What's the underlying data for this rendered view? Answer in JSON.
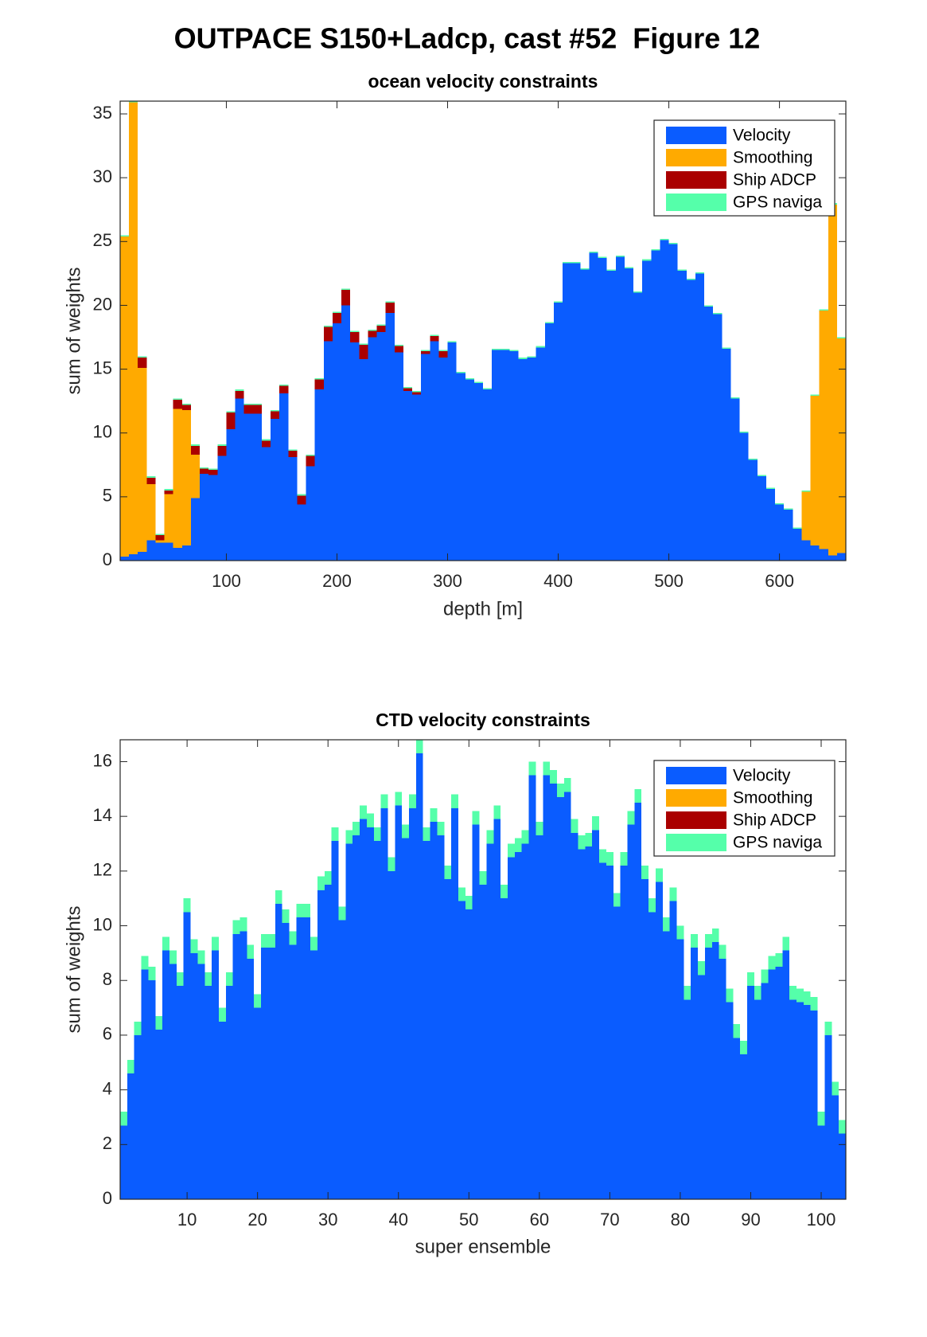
{
  "title": "OUTPACE S150+Ladcp, cast #52  Figure 12",
  "chart_data": [
    {
      "type": "stacked-bar",
      "title": "ocean velocity constraints",
      "xlabel": "depth [m]",
      "ylabel": "sum of weights",
      "x": [
        8,
        16,
        24,
        32,
        40,
        48,
        56,
        64,
        72,
        80,
        88,
        96,
        104,
        112,
        120,
        128,
        136,
        144,
        152,
        160,
        168,
        176,
        184,
        192,
        200,
        208,
        216,
        224,
        232,
        240,
        248,
        256,
        264,
        272,
        280,
        288,
        296,
        304,
        312,
        320,
        328,
        336,
        344,
        352,
        360,
        368,
        376,
        384,
        392,
        400,
        408,
        416,
        424,
        432,
        440,
        448,
        456,
        464,
        472,
        480,
        488,
        496,
        504,
        512,
        520,
        528,
        536,
        544,
        552,
        560,
        568,
        576,
        584,
        592,
        600,
        608,
        616,
        624,
        632,
        640,
        648,
        656
      ],
      "bar_width": 8,
      "xlim": [
        4,
        660
      ],
      "xticks": [
        100,
        200,
        300,
        400,
        500,
        600
      ],
      "ylim": [
        0,
        36
      ],
      "yticks": [
        0,
        5,
        10,
        15,
        20,
        25,
        30,
        35
      ],
      "legend": "upper right",
      "series": [
        {
          "name": "Velocity",
          "color": "#0a5cff",
          "values": [
            0.3,
            0.5,
            0.7,
            1.6,
            1.4,
            1.4,
            1.0,
            1.2,
            4.9,
            6.8,
            6.7,
            8.2,
            10.3,
            12.7,
            11.5,
            11.5,
            8.9,
            11.1,
            13.1,
            8.1,
            4.4,
            7.4,
            13.4,
            17.2,
            18.6,
            20.0,
            17.1,
            15.8,
            17.5,
            17.9,
            19.4,
            16.3,
            13.3,
            13.0,
            16.2,
            17.2,
            15.9,
            17.1,
            14.7,
            14.2,
            13.9,
            13.4,
            16.5,
            16.5,
            16.4,
            15.8,
            15.9,
            16.7,
            18.6,
            20.2,
            23.3,
            23.3,
            22.8,
            24.1,
            23.7,
            22.7,
            23.8,
            22.9,
            21.0,
            23.5,
            24.3,
            25.1,
            24.8,
            22.7,
            22.0,
            22.5,
            19.9,
            19.3,
            16.6,
            12.7,
            10.0,
            7.9,
            6.6,
            5.6,
            4.4,
            4.0,
            2.5,
            1.6,
            1.2,
            0.9,
            0.4,
            0.6
          ]
        },
        {
          "name": "Smoothing",
          "color": "#ffaa00",
          "values": [
            25.1,
            35.4,
            14.4,
            4.4,
            0.2,
            3.8,
            10.9,
            10.6,
            3.4,
            0,
            0,
            0,
            0,
            0,
            0,
            0,
            0,
            0,
            0,
            0,
            0,
            0,
            0,
            0,
            0,
            0,
            0,
            0,
            0,
            0,
            0,
            0,
            0,
            0,
            0,
            0,
            0,
            0,
            0,
            0,
            0,
            0,
            0,
            0,
            0,
            0,
            0,
            0,
            0,
            0,
            0,
            0,
            0,
            0,
            0,
            0,
            0,
            0,
            0,
            0,
            0,
            0,
            0,
            0,
            0,
            0,
            0,
            0,
            0,
            0,
            0,
            0,
            0,
            0,
            0,
            0,
            0,
            3.8,
            11.7,
            18.7,
            27.5,
            16.8
          ]
        },
        {
          "name": "Ship ADCP",
          "color": "#aa0000",
          "values": [
            0,
            0,
            0.8,
            0.5,
            0.4,
            0.3,
            0.7,
            0.4,
            0.7,
            0.4,
            0.4,
            0.8,
            1.3,
            0.6,
            0.7,
            0.7,
            0.5,
            0.6,
            0.6,
            0.5,
            0.7,
            0.8,
            0.8,
            1.1,
            0.8,
            1.2,
            0.8,
            1.1,
            0.5,
            0.5,
            0.8,
            0.5,
            0.2,
            0.2,
            0.2,
            0.4,
            0.5,
            0,
            0,
            0,
            0,
            0,
            0,
            0,
            0,
            0,
            0,
            0,
            0,
            0,
            0,
            0,
            0,
            0,
            0,
            0,
            0,
            0,
            0,
            0,
            0,
            0,
            0,
            0,
            0,
            0,
            0,
            0,
            0,
            0,
            0,
            0,
            0,
            0,
            0,
            0,
            0,
            0,
            0,
            0,
            0,
            0
          ]
        },
        {
          "name": "GPS naviga",
          "color": "#55ffaa",
          "values": [
            0.1,
            0.1,
            0.1,
            0.1,
            0.1,
            0.1,
            0.1,
            0.1,
            0.1,
            0.1,
            0.1,
            0.1,
            0.1,
            0.1,
            0.1,
            0.1,
            0.1,
            0.1,
            0.1,
            0.1,
            0.1,
            0.1,
            0.1,
            0.1,
            0.1,
            0.1,
            0.1,
            0.1,
            0.1,
            0.1,
            0.1,
            0.1,
            0.1,
            0.1,
            0.1,
            0.1,
            0.1,
            0.1,
            0.1,
            0.1,
            0.1,
            0.1,
            0.1,
            0.1,
            0.1,
            0.1,
            0.1,
            0.1,
            0.1,
            0.1,
            0.1,
            0.1,
            0.1,
            0.1,
            0.1,
            0.1,
            0.1,
            0.1,
            0.1,
            0.1,
            0.1,
            0.1,
            0.1,
            0.1,
            0.1,
            0.1,
            0.1,
            0.1,
            0.1,
            0.1,
            0.1,
            0.1,
            0.1,
            0.1,
            0.1,
            0.1,
            0.1,
            0.1,
            0.1,
            0.1,
            0.1,
            0.1
          ]
        }
      ]
    },
    {
      "type": "stacked-bar",
      "title": "CTD velocity constraints",
      "xlabel": "super ensemble",
      "ylabel": "sum of weights",
      "x": [
        1,
        2,
        3,
        4,
        5,
        6,
        7,
        8,
        9,
        10,
        11,
        12,
        13,
        14,
        15,
        16,
        17,
        18,
        19,
        20,
        21,
        22,
        23,
        24,
        25,
        26,
        27,
        28,
        29,
        30,
        31,
        32,
        33,
        34,
        35,
        36,
        37,
        38,
        39,
        40,
        41,
        42,
        43,
        44,
        45,
        46,
        47,
        48,
        49,
        50,
        51,
        52,
        53,
        54,
        55,
        56,
        57,
        58,
        59,
        60,
        61,
        62,
        63,
        64,
        65,
        66,
        67,
        68,
        69,
        70,
        71,
        72,
        73,
        74,
        75,
        76,
        77,
        78,
        79,
        80,
        81,
        82,
        83,
        84,
        85,
        86,
        87,
        88,
        89,
        90,
        91,
        92,
        93,
        94,
        95,
        96,
        97,
        98,
        99,
        100,
        101,
        102,
        103
      ],
      "bar_width": 1,
      "xlim": [
        0.5,
        103.5
      ],
      "xticks": [
        10,
        20,
        30,
        40,
        50,
        60,
        70,
        80,
        90,
        100
      ],
      "ylim": [
        0,
        16.8
      ],
      "yticks": [
        0,
        2,
        4,
        6,
        8,
        10,
        12,
        14,
        16
      ],
      "legend": "upper right",
      "series": [
        {
          "name": "Velocity",
          "color": "#0a5cff",
          "values": [
            2.7,
            4.6,
            6.0,
            8.4,
            8.0,
            6.2,
            9.1,
            8.6,
            7.8,
            10.5,
            9.0,
            8.6,
            7.8,
            9.1,
            6.5,
            7.8,
            9.7,
            9.8,
            8.8,
            7.0,
            9.2,
            9.2,
            10.8,
            10.1,
            9.3,
            10.3,
            10.3,
            9.1,
            11.3,
            11.5,
            13.1,
            10.2,
            13.0,
            13.3,
            13.9,
            13.6,
            13.1,
            14.3,
            12.0,
            14.4,
            13.2,
            14.3,
            16.3,
            13.1,
            13.8,
            13.3,
            11.7,
            14.3,
            10.9,
            10.6,
            13.7,
            11.5,
            13.0,
            13.9,
            11.0,
            12.5,
            12.7,
            13.0,
            15.5,
            13.3,
            15.5,
            15.2,
            14.7,
            14.9,
            13.4,
            12.8,
            12.9,
            13.5,
            12.3,
            12.2,
            10.7,
            12.2,
            13.7,
            14.5,
            11.7,
            10.5,
            11.6,
            9.8,
            10.9,
            9.5,
            7.3,
            9.2,
            8.2,
            9.2,
            9.4,
            8.8,
            7.2,
            5.9,
            5.3,
            7.8,
            7.3,
            7.9,
            8.4,
            8.5,
            9.1,
            7.3,
            7.2,
            7.1,
            6.9,
            2.7,
            6.0,
            3.8,
            2.4
          ]
        },
        {
          "name": "Smoothing",
          "color": "#ffaa00",
          "values": [
            0,
            0,
            0,
            0,
            0,
            0,
            0,
            0,
            0,
            0,
            0,
            0,
            0,
            0,
            0,
            0,
            0,
            0,
            0,
            0,
            0,
            0,
            0,
            0,
            0,
            0,
            0,
            0,
            0,
            0,
            0,
            0,
            0,
            0,
            0,
            0,
            0,
            0,
            0,
            0,
            0,
            0,
            0,
            0,
            0,
            0,
            0,
            0,
            0,
            0,
            0,
            0,
            0,
            0,
            0,
            0,
            0,
            0,
            0,
            0,
            0,
            0,
            0,
            0,
            0,
            0,
            0,
            0,
            0,
            0,
            0,
            0,
            0,
            0,
            0,
            0,
            0,
            0,
            0,
            0,
            0,
            0,
            0,
            0,
            0,
            0,
            0,
            0,
            0,
            0,
            0,
            0,
            0,
            0,
            0,
            0,
            0,
            0,
            0,
            0,
            0,
            0,
            0
          ]
        },
        {
          "name": "Ship ADCP",
          "color": "#aa0000",
          "values": [
            0,
            0,
            0,
            0,
            0,
            0,
            0,
            0,
            0,
            0,
            0,
            0,
            0,
            0,
            0,
            0,
            0,
            0,
            0,
            0,
            0,
            0,
            0,
            0,
            0,
            0,
            0,
            0,
            0,
            0,
            0,
            0,
            0,
            0,
            0,
            0,
            0,
            0,
            0,
            0,
            0,
            0,
            0,
            0,
            0,
            0,
            0,
            0,
            0,
            0,
            0,
            0,
            0,
            0,
            0,
            0,
            0,
            0,
            0,
            0,
            0,
            0,
            0,
            0,
            0,
            0,
            0,
            0,
            0,
            0,
            0,
            0,
            0,
            0,
            0,
            0,
            0,
            0,
            0,
            0,
            0,
            0,
            0,
            0,
            0,
            0,
            0,
            0,
            0,
            0,
            0,
            0,
            0,
            0,
            0,
            0,
            0,
            0,
            0,
            0,
            0,
            0,
            0
          ]
        },
        {
          "name": "GPS naviga",
          "color": "#55ffaa",
          "values": [
            0.5,
            0.5,
            0.5,
            0.5,
            0.5,
            0.5,
            0.5,
            0.5,
            0.5,
            0.5,
            0.5,
            0.5,
            0.5,
            0.5,
            0.5,
            0.5,
            0.5,
            0.5,
            0.5,
            0.5,
            0.5,
            0.5,
            0.5,
            0.5,
            0.5,
            0.5,
            0.5,
            0.5,
            0.5,
            0.5,
            0.5,
            0.5,
            0.5,
            0.5,
            0.5,
            0.5,
            0.5,
            0.5,
            0.5,
            0.5,
            0.5,
            0.5,
            0.5,
            0.5,
            0.5,
            0.5,
            0.5,
            0.5,
            0.5,
            0.5,
            0.5,
            0.5,
            0.5,
            0.5,
            0.5,
            0.5,
            0.5,
            0.5,
            0.5,
            0.5,
            0.5,
            0.5,
            0.5,
            0.5,
            0.5,
            0.5,
            0.5,
            0.5,
            0.5,
            0.5,
            0.5,
            0.5,
            0.5,
            0.5,
            0.5,
            0.5,
            0.5,
            0.5,
            0.5,
            0.5,
            0.5,
            0.5,
            0.5,
            0.5,
            0.5,
            0.5,
            0.5,
            0.5,
            0.5,
            0.5,
            0.5,
            0.5,
            0.5,
            0.5,
            0.5,
            0.5,
            0.5,
            0.5,
            0.5,
            0.5,
            0.5,
            0.5,
            0.5
          ]
        }
      ]
    }
  ]
}
